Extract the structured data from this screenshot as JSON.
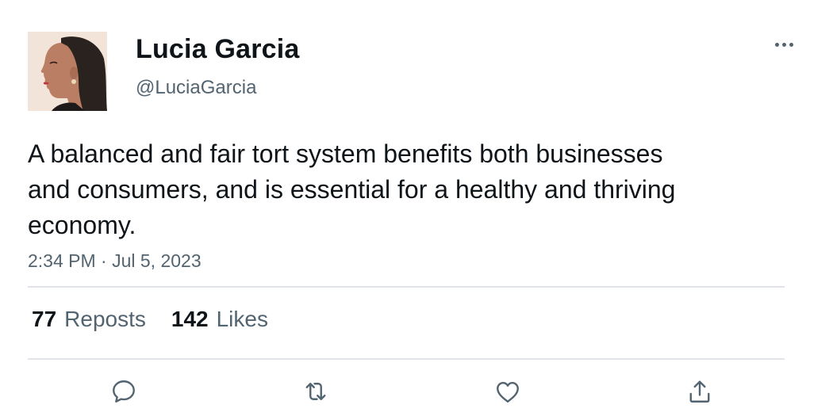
{
  "author": {
    "name": "Lucia Garcia",
    "handle": "@LuciaGarcia"
  },
  "tweet": {
    "text": "A balanced and fair tort system benefits both businesses and consumers, and is essential for a healthy and thriving economy.",
    "timestamp": "2:34 PM · Jul 5, 2023"
  },
  "stats": {
    "reposts_count": "77",
    "reposts_label": "Reposts",
    "likes_count": "142",
    "likes_label": "Likes"
  },
  "icons": {
    "more": "more-horizontal-icon",
    "reply": "reply-icon",
    "repost": "repost-icon",
    "like": "heart-icon",
    "share": "share-icon"
  },
  "colors": {
    "text_primary": "#0f1419",
    "text_secondary": "#536471",
    "divider": "#e1e4e8"
  }
}
